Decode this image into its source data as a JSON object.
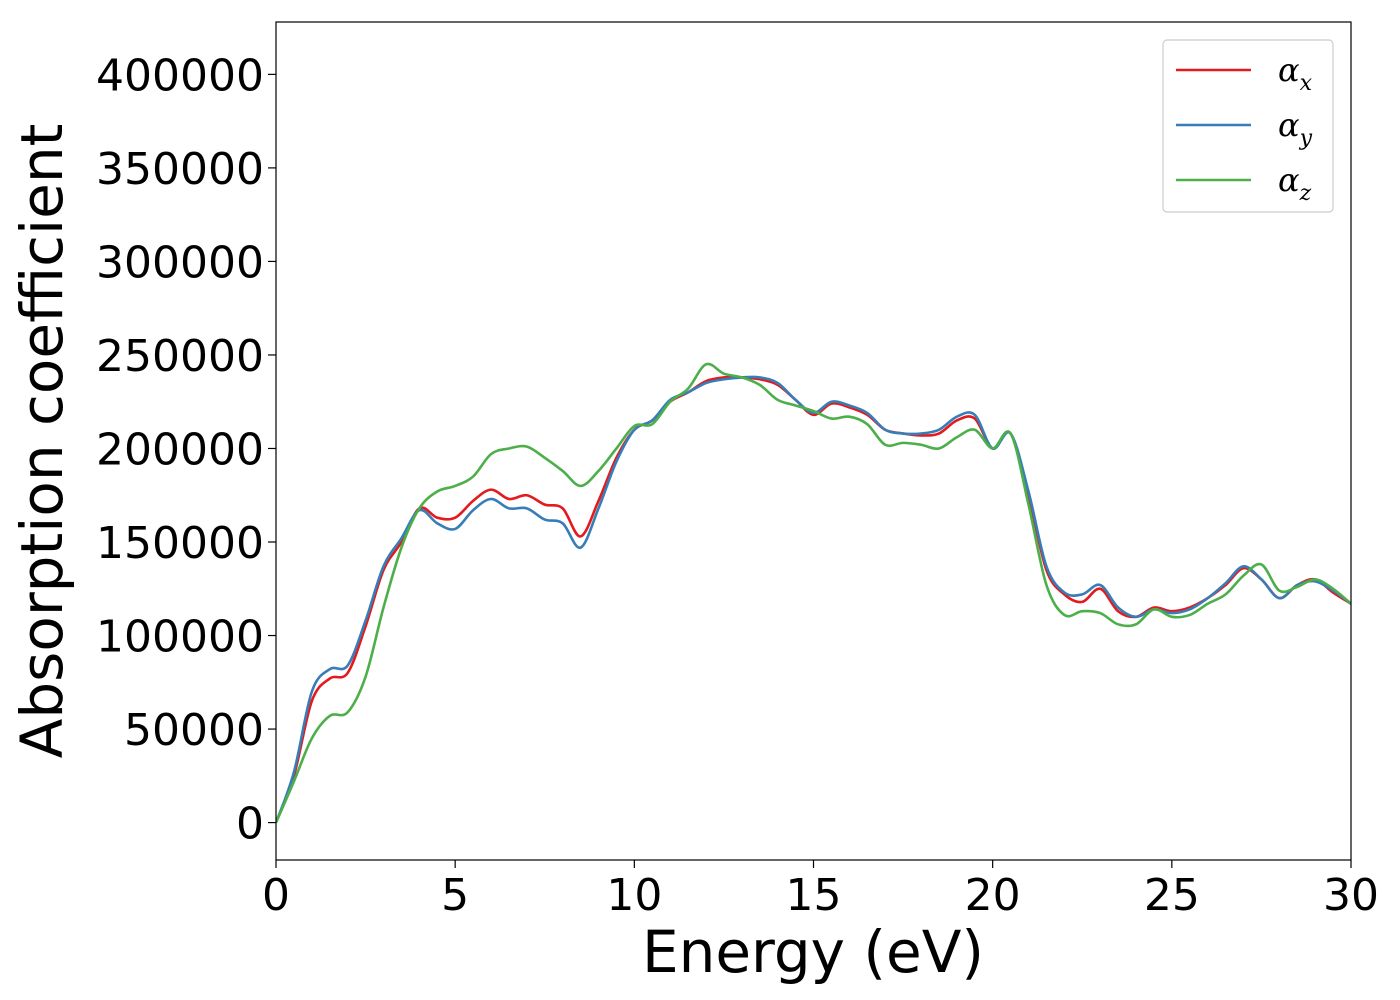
{
  "chart_data": {
    "type": "line",
    "title": "",
    "xlabel": "Energy (eV)",
    "ylabel": "Absorption coefficient",
    "xlim": [
      0,
      30
    ],
    "ylim": [
      -20000,
      428000
    ],
    "x_ticks": [
      "0",
      "5",
      "10",
      "15",
      "20",
      "25",
      "30"
    ],
    "y_ticks": [
      "0",
      "50000",
      "100000",
      "150000",
      "200000",
      "250000",
      "300000",
      "350000",
      "400000"
    ],
    "grid": false,
    "legend_position": "top-right",
    "x": [
      0,
      0.5,
      1.0,
      1.5,
      2.0,
      2.5,
      3.0,
      3.5,
      4.0,
      4.5,
      5.0,
      5.5,
      6.0,
      6.5,
      7.0,
      7.5,
      8.0,
      8.5,
      9.0,
      9.5,
      10.0,
      10.5,
      11.0,
      11.5,
      12.0,
      12.5,
      13.0,
      13.5,
      14.0,
      14.5,
      15.0,
      15.5,
      16.0,
      16.5,
      17.0,
      17.5,
      18.0,
      18.5,
      19.0,
      19.5,
      20.0,
      20.5,
      21.0,
      21.5,
      22.0,
      22.5,
      23.0,
      23.5,
      24.0,
      24.5,
      25.0,
      25.5,
      26.0,
      26.5,
      27.0,
      27.5,
      28.0,
      28.5,
      29.0,
      29.5,
      30.0
    ],
    "series": [
      {
        "name": "α",
        "subscript": "x",
        "color": "#e41a1c",
        "values": [
          0,
          25000,
          65000,
          77000,
          80000,
          105000,
          135000,
          150000,
          168000,
          163000,
          163000,
          172000,
          178000,
          173000,
          175000,
          170000,
          168000,
          153000,
          172000,
          195000,
          210000,
          215000,
          225000,
          230000,
          236000,
          238000,
          238000,
          237000,
          234000,
          226000,
          218000,
          224000,
          222000,
          218000,
          210000,
          208000,
          207000,
          208000,
          215000,
          216000,
          200000,
          208000,
          175000,
          135000,
          122000,
          118000,
          125000,
          113000,
          110000,
          115000,
          113000,
          115000,
          120000,
          127000,
          136000,
          130000,
          120000,
          127000,
          130000,
          123000,
          117000
        ]
      },
      {
        "name": "α",
        "subscript": "y",
        "color": "#377eb8",
        "values": [
          0,
          27000,
          70000,
          82000,
          84000,
          108000,
          137000,
          152000,
          167000,
          160000,
          157000,
          167000,
          173000,
          168000,
          168000,
          162000,
          160000,
          147000,
          168000,
          193000,
          210000,
          215000,
          226000,
          230000,
          235000,
          237000,
          238000,
          238000,
          235000,
          226000,
          219000,
          225000,
          223000,
          219000,
          210000,
          208000,
          208000,
          210000,
          217000,
          218000,
          200000,
          208000,
          177000,
          137000,
          123000,
          122000,
          127000,
          115000,
          110000,
          114000,
          112000,
          114000,
          120000,
          128000,
          137000,
          130000,
          120000,
          127000,
          129000,
          124000,
          117000
        ]
      },
      {
        "name": "α",
        "subscript": "z",
        "color": "#4daf4a",
        "values": [
          0,
          22000,
          45000,
          57000,
          59000,
          78000,
          115000,
          147000,
          168000,
          177000,
          180000,
          185000,
          197000,
          200000,
          201000,
          195000,
          188000,
          180000,
          188000,
          200000,
          212000,
          213000,
          225000,
          232000,
          245000,
          240000,
          238000,
          234000,
          226000,
          223000,
          220000,
          216000,
          217000,
          213000,
          202000,
          203000,
          202000,
          200000,
          206000,
          210000,
          200000,
          208000,
          170000,
          127000,
          111000,
          113000,
          112000,
          106000,
          106000,
          114000,
          110000,
          111000,
          117000,
          122000,
          132000,
          138000,
          124000,
          126000,
          130000,
          125000,
          117000
        ]
      }
    ]
  }
}
